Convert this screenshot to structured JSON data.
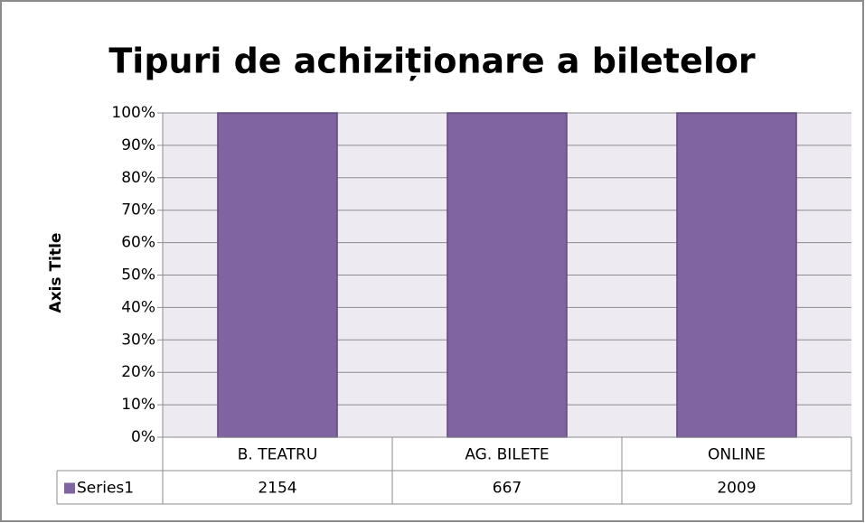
{
  "chart_data": {
    "type": "bar",
    "stacking": "percent",
    "title": "Tipuri de achiziționare a biletelor",
    "y_axis_label": "Axis Title",
    "categories": [
      "B. TEATRU",
      "AG. BILETE",
      "ONLINE"
    ],
    "series": [
      {
        "name": "Series1",
        "color": "#8064a2",
        "values": [
          2154,
          667,
          2009
        ]
      }
    ],
    "ylim": [
      0,
      100
    ],
    "yticks": [
      {
        "value": 0,
        "label": "0%"
      },
      {
        "value": 10,
        "label": "10%"
      },
      {
        "value": 20,
        "label": "20%"
      },
      {
        "value": 30,
        "label": "30%"
      },
      {
        "value": 40,
        "label": "40%"
      },
      {
        "value": 50,
        "label": "50%"
      },
      {
        "value": 60,
        "label": "60%"
      },
      {
        "value": 70,
        "label": "70%"
      },
      {
        "value": 80,
        "label": "80%"
      },
      {
        "value": 90,
        "label": "90%"
      },
      {
        "value": 100,
        "label": "100%"
      }
    ],
    "grid": true,
    "data_table": true
  }
}
